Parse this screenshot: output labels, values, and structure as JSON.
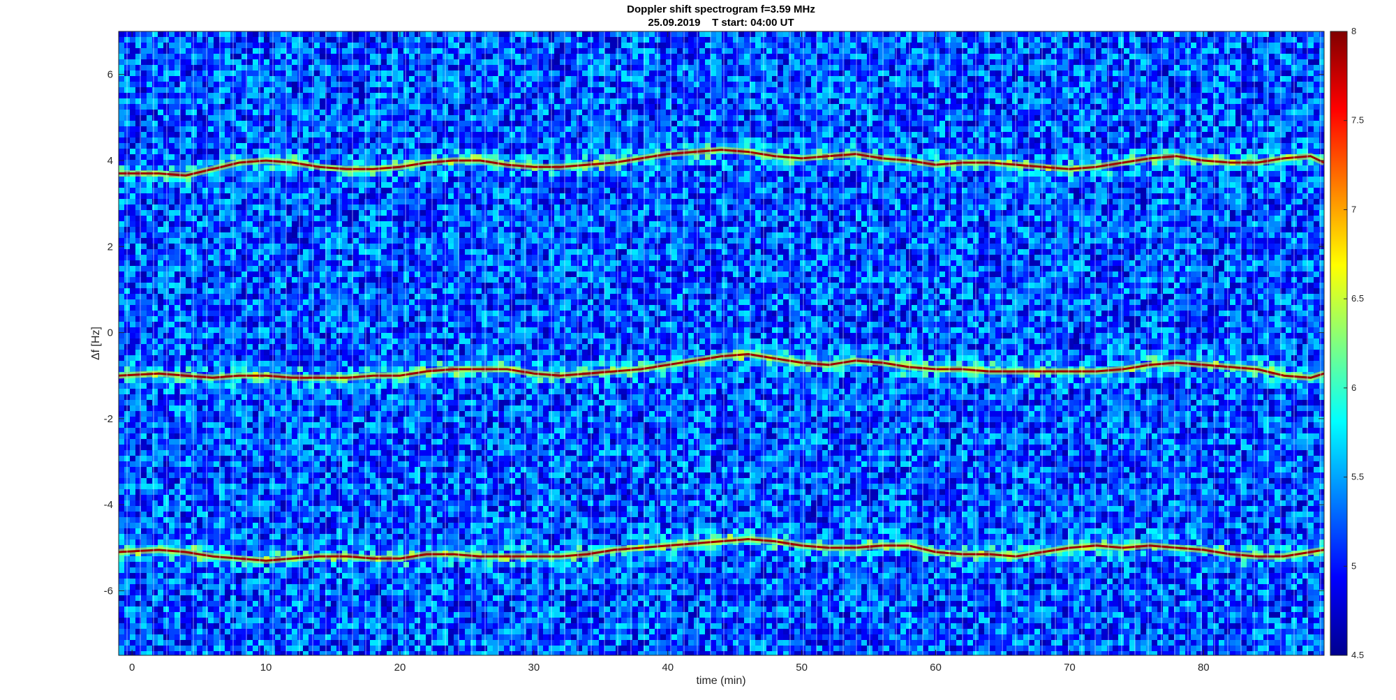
{
  "chart_data": {
    "type": "heatmap",
    "title": "Doppler shift spectrogram f=3.59 MHz",
    "subtitle": "25.09.2019    T start: 04:00 UT",
    "xlabel": "time (min)",
    "ylabel": "Δf [Hz]",
    "xlim": [
      -1,
      89
    ],
    "ylim": [
      -7.5,
      7
    ],
    "xticks": [
      0,
      10,
      20,
      30,
      40,
      50,
      60,
      70,
      80
    ],
    "yticks": [
      -6,
      -4,
      -2,
      0,
      2,
      4,
      6
    ],
    "colorbar": {
      "limits": [
        4.5,
        8
      ],
      "ticks": [
        4.5,
        5,
        5.5,
        6,
        6.5,
        7,
        7.5,
        8
      ],
      "colormap": "jet"
    },
    "background_level": 5.2,
    "traces": [
      {
        "x": [
          -1,
          2,
          4,
          6,
          8,
          10,
          12,
          14,
          16,
          18,
          20,
          22,
          24,
          26,
          28,
          30,
          32,
          34,
          36,
          38,
          40,
          42,
          44,
          46,
          48,
          50,
          52,
          54,
          56,
          58,
          60,
          62,
          64,
          66,
          68,
          70,
          72,
          74,
          76,
          78,
          80,
          82,
          84,
          86,
          88,
          89
        ],
        "y": [
          3.7,
          3.7,
          3.65,
          3.8,
          3.95,
          4.0,
          3.95,
          3.85,
          3.8,
          3.8,
          3.85,
          3.95,
          4.0,
          4.0,
          3.9,
          3.85,
          3.85,
          3.9,
          3.95,
          4.05,
          4.15,
          4.2,
          4.25,
          4.2,
          4.1,
          4.05,
          4.1,
          4.15,
          4.05,
          4.0,
          3.9,
          3.95,
          3.95,
          3.9,
          3.85,
          3.8,
          3.85,
          3.95,
          4.05,
          4.1,
          4.0,
          3.95,
          3.95,
          4.05,
          4.1,
          3.95
        ],
        "peak_level": 7.9
      },
      {
        "x": [
          -1,
          2,
          4,
          6,
          8,
          10,
          12,
          14,
          16,
          18,
          20,
          22,
          24,
          26,
          28,
          30,
          32,
          34,
          36,
          38,
          40,
          42,
          44,
          46,
          48,
          50,
          52,
          54,
          56,
          58,
          60,
          62,
          64,
          66,
          68,
          70,
          72,
          74,
          76,
          78,
          80,
          82,
          84,
          86,
          88,
          89
        ],
        "y": [
          -1.0,
          -0.95,
          -1.0,
          -1.05,
          -1.0,
          -1.0,
          -1.05,
          -1.05,
          -1.05,
          -1.0,
          -1.0,
          -0.9,
          -0.85,
          -0.85,
          -0.85,
          -0.95,
          -1.0,
          -0.95,
          -0.9,
          -0.85,
          -0.75,
          -0.65,
          -0.55,
          -0.5,
          -0.6,
          -0.7,
          -0.75,
          -0.65,
          -0.7,
          -0.8,
          -0.85,
          -0.85,
          -0.9,
          -0.9,
          -0.9,
          -0.9,
          -0.9,
          -0.85,
          -0.75,
          -0.7,
          -0.75,
          -0.8,
          -0.85,
          -1.0,
          -1.05,
          -0.95
        ],
        "peak_level": 7.9
      },
      {
        "x": [
          -1,
          2,
          4,
          6,
          8,
          10,
          12,
          14,
          16,
          18,
          20,
          22,
          24,
          26,
          28,
          30,
          32,
          34,
          36,
          38,
          40,
          42,
          44,
          46,
          48,
          50,
          52,
          54,
          56,
          58,
          60,
          62,
          64,
          66,
          68,
          70,
          72,
          74,
          76,
          78,
          80,
          82,
          84,
          86,
          88,
          89
        ],
        "y": [
          -5.1,
          -5.05,
          -5.1,
          -5.2,
          -5.25,
          -5.3,
          -5.25,
          -5.2,
          -5.2,
          -5.25,
          -5.25,
          -5.15,
          -5.15,
          -5.2,
          -5.2,
          -5.2,
          -5.2,
          -5.15,
          -5.05,
          -5.0,
          -4.95,
          -4.9,
          -4.85,
          -4.8,
          -4.85,
          -4.95,
          -5.0,
          -5.0,
          -4.95,
          -4.95,
          -5.1,
          -5.15,
          -5.15,
          -5.2,
          -5.1,
          -5.0,
          -4.95,
          -5.0,
          -4.95,
          -5.0,
          -5.05,
          -5.15,
          -5.2,
          -5.2,
          -5.1,
          -5.05
        ],
        "peak_level": 7.9
      }
    ]
  }
}
